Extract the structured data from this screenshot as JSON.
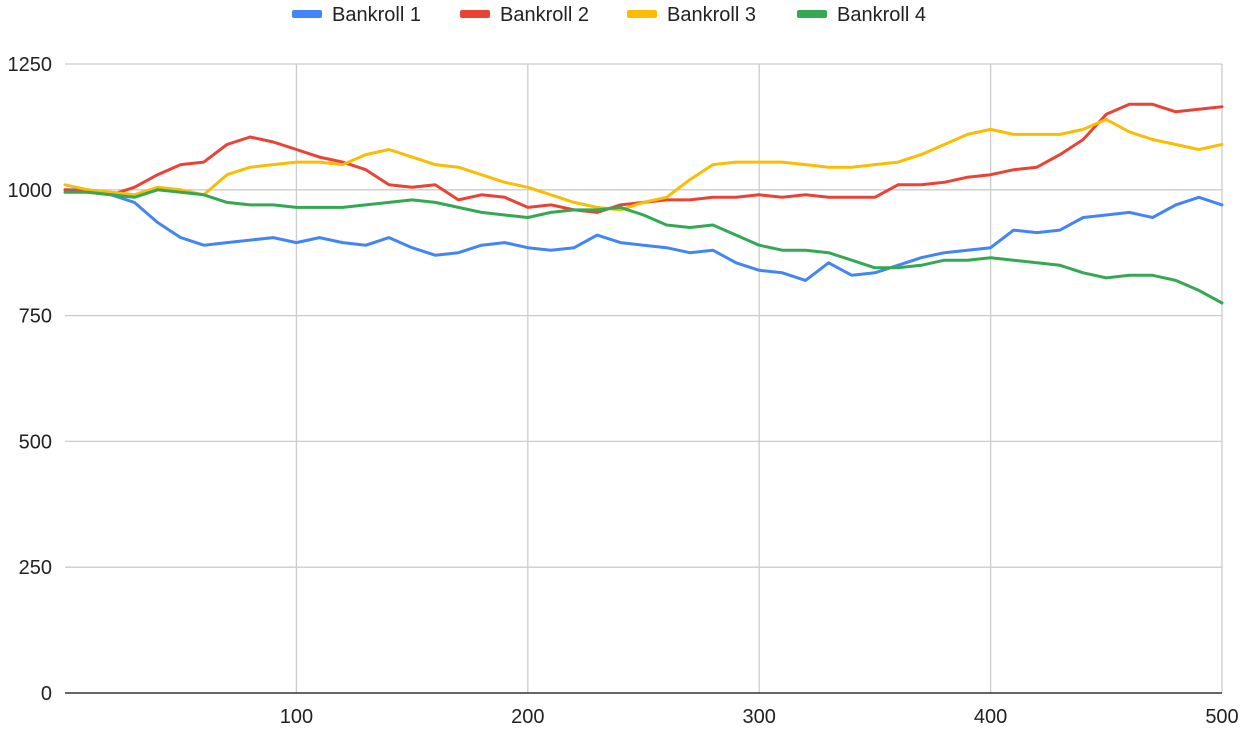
{
  "chart_data": {
    "type": "line",
    "title": "",
    "xlabel": "",
    "ylabel": "",
    "xlim": [
      0,
      500
    ],
    "ylim": [
      0,
      1250
    ],
    "x_ticks": [
      100,
      200,
      300,
      400,
      500
    ],
    "x_tick_labels": [
      "100",
      "200",
      "300",
      "400",
      "500"
    ],
    "y_ticks": [
      0,
      250,
      500,
      750,
      1000,
      1250
    ],
    "y_tick_labels": [
      "0",
      "250",
      "500",
      "750",
      "1000",
      "1250"
    ],
    "grid": true,
    "legend_position": "top-center",
    "x": [
      0,
      10,
      20,
      30,
      40,
      50,
      60,
      70,
      80,
      90,
      100,
      110,
      120,
      130,
      140,
      150,
      160,
      170,
      180,
      190,
      200,
      210,
      220,
      230,
      240,
      250,
      260,
      270,
      280,
      290,
      300,
      310,
      320,
      330,
      340,
      350,
      360,
      370,
      380,
      390,
      400,
      410,
      420,
      430,
      440,
      450,
      460,
      470,
      480,
      490,
      500
    ],
    "series": [
      {
        "name": "Bankroll 1",
        "color": "#4285f4",
        "values": [
          1000,
          1000,
          990,
          975,
          935,
          905,
          890,
          895,
          900,
          905,
          895,
          905,
          895,
          890,
          905,
          885,
          870,
          875,
          890,
          895,
          885,
          880,
          885,
          910,
          895,
          890,
          885,
          875,
          880,
          855,
          840,
          835,
          820,
          855,
          830,
          835,
          850,
          865,
          875,
          880,
          885,
          920,
          915,
          920,
          945,
          950,
          955,
          945,
          970,
          985,
          970
        ]
      },
      {
        "name": "Bankroll 2",
        "color": "#ea4335",
        "values": [
          1000,
          995,
          990,
          1005,
          1030,
          1050,
          1055,
          1090,
          1105,
          1095,
          1080,
          1065,
          1055,
          1040,
          1010,
          1005,
          1010,
          980,
          990,
          985,
          965,
          970,
          960,
          955,
          970,
          975,
          980,
          980,
          985,
          985,
          990,
          985,
          990,
          985,
          985,
          985,
          1010,
          1010,
          1015,
          1025,
          1030,
          1040,
          1045,
          1070,
          1100,
          1150,
          1170,
          1170,
          1155,
          1160,
          1165
        ]
      },
      {
        "name": "Bankroll 3",
        "color": "#fbbc04",
        "values": [
          1010,
          1000,
          995,
          990,
          1005,
          1000,
          990,
          1030,
          1045,
          1050,
          1055,
          1055,
          1050,
          1070,
          1080,
          1065,
          1050,
          1045,
          1030,
          1015,
          1005,
          990,
          975,
          965,
          960,
          975,
          985,
          1020,
          1050,
          1055,
          1055,
          1055,
          1050,
          1045,
          1045,
          1050,
          1055,
          1070,
          1090,
          1110,
          1120,
          1110,
          1110,
          1110,
          1120,
          1140,
          1115,
          1100,
          1090,
          1080,
          1090
        ]
      },
      {
        "name": "Bankroll 4",
        "color": "#34a853",
        "values": [
          995,
          995,
          990,
          985,
          1000,
          995,
          990,
          975,
          970,
          970,
          965,
          965,
          965,
          970,
          975,
          980,
          975,
          965,
          955,
          950,
          945,
          955,
          960,
          960,
          965,
          950,
          930,
          925,
          930,
          910,
          890,
          880,
          880,
          875,
          860,
          845,
          845,
          850,
          860,
          860,
          865,
          860,
          855,
          850,
          835,
          825,
          830,
          830,
          820,
          800,
          775
        ]
      }
    ]
  }
}
